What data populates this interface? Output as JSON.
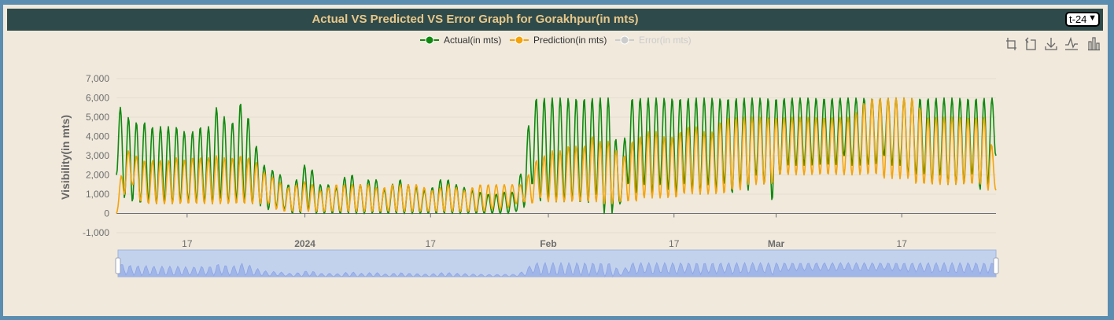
{
  "header": {
    "title": "Actual VS Predicted VS Error Graph for Gorakhpur(in mts)",
    "select_value": "t-24"
  },
  "toolbar": {
    "icons": [
      "zoom-icon",
      "zoom-reset-icon",
      "download-icon",
      "line-chart-icon",
      "bar-chart-icon"
    ]
  },
  "chart_data": {
    "type": "line",
    "title": "Actual VS Predicted VS Error Graph for Gorakhpur(in mts)",
    "ylabel": "Visibility(in mts)",
    "ylim": [
      -1000,
      7000
    ],
    "yticks": [
      "7,000",
      "6,000",
      "5,000",
      "4,000",
      "3,000",
      "2,000",
      "1,000",
      "0",
      "-1,000"
    ],
    "xticks": [
      {
        "label": "17",
        "bold": false
      },
      {
        "label": "2024",
        "bold": true
      },
      {
        "label": "17",
        "bold": false
      },
      {
        "label": "Feb",
        "bold": true
      },
      {
        "label": "17",
        "bold": false
      },
      {
        "label": "Mar",
        "bold": true
      },
      {
        "label": "17",
        "bold": false
      }
    ],
    "xrange": [
      "2023-12-08",
      "2024-03-29"
    ],
    "legend_position": "top-center",
    "grid": true,
    "series": [
      {
        "name": "Actual(in mts)",
        "color": "#0f8a0f",
        "visible": true,
        "daily_max": [
          6000,
          5000,
          5000,
          4500,
          5000,
          4000,
          5000,
          4000,
          5000,
          3500,
          5000,
          4000,
          5000,
          6000,
          4000,
          5500,
          6000,
          4000,
          3000,
          2000,
          2500,
          1500,
          1500,
          2000,
          3000,
          1500,
          1500,
          1500,
          1200,
          2500,
          1500,
          1500,
          2000,
          1500,
          1000,
          2000,
          1500,
          1500,
          1200,
          1200,
          1500,
          2000,
          1500,
          1500,
          1200,
          1200,
          1000,
          1000,
          1000,
          1200,
          1000,
          3000,
          6000,
          6000,
          6000,
          6000,
          6000,
          6000,
          6000,
          6000,
          6000,
          6000,
          6000,
          1500,
          6000,
          6000,
          6000,
          6000,
          6000,
          6000,
          6000,
          6000,
          6000,
          6000,
          6000,
          6000,
          6000,
          6000,
          6000,
          6000,
          6000,
          6000,
          6000,
          6000,
          6000,
          6000,
          6000,
          6000,
          6000,
          6000,
          6000,
          6000,
          6000,
          6000,
          6000,
          6000,
          6000,
          6000,
          6000,
          6000,
          6000,
          6000,
          6000,
          6000,
          6000,
          6000,
          6000,
          6000,
          6000,
          6000,
          6000
        ],
        "daily_min": [
          2000,
          800,
          600,
          500,
          600,
          500,
          600,
          500,
          500,
          600,
          500,
          600,
          500,
          800,
          500,
          600,
          500,
          500,
          400,
          200,
          300,
          200,
          0,
          0,
          200,
          0,
          0,
          0,
          0,
          0,
          0,
          0,
          0,
          0,
          0,
          0,
          0,
          0,
          0,
          0,
          0,
          0,
          0,
          0,
          0,
          0,
          0,
          0,
          0,
          0,
          100,
          300,
          1500,
          600,
          800,
          600,
          600,
          600,
          500,
          500,
          1000,
          0,
          0,
          500,
          1500,
          1000,
          1500,
          1000,
          1500,
          1200,
          1000,
          1500,
          1200,
          1000,
          1500,
          1200,
          1500,
          1000,
          1500,
          1200,
          2000,
          1500,
          600,
          2000,
          2500,
          2500,
          2500,
          2500,
          2500,
          2500,
          2500,
          3000,
          2500,
          2500,
          2500,
          2500,
          3000,
          2500,
          2500,
          2000,
          2000,
          2000,
          1500,
          2000,
          1500,
          1500,
          1500,
          2000,
          1200,
          1500,
          3000
        ]
      },
      {
        "name": "Prediction(in mts)",
        "color": "#f5a30a",
        "visible": true,
        "daily_max": [
          0,
          3500,
          3000,
          3000,
          2500,
          3000,
          2500,
          3000,
          2800,
          2800,
          3000,
          2800,
          3000,
          3000,
          2800,
          3000,
          3000,
          2800,
          2500,
          1800,
          2000,
          1200,
          1500,
          1500,
          1800,
          1200,
          1200,
          1500,
          1500,
          1500,
          1500,
          1500,
          1500,
          1200,
          1500,
          1500,
          1500,
          1500,
          1500,
          1200,
          1200,
          1500,
          1500,
          1200,
          1200,
          1500,
          1500,
          1500,
          1500,
          1500,
          1500,
          1500,
          2500,
          3000,
          3000,
          3500,
          3000,
          4000,
          3000,
          4000,
          4000,
          3500,
          4000,
          2500,
          3500,
          4000,
          4000,
          4500,
          4000,
          4000,
          4000,
          4500,
          4500,
          4500,
          4000,
          4500,
          5000,
          5000,
          5000,
          5000,
          5000,
          5000,
          5000,
          5000,
          5000,
          5000,
          5000,
          5000,
          5000,
          5000,
          5000,
          5000,
          5000,
          5500,
          6000,
          6000,
          6000,
          6000,
          6000,
          6000,
          6000,
          5000,
          5000,
          5000,
          5000,
          5000,
          5000,
          5000,
          5000,
          5000,
          2000
        ],
        "daily_min": [
          0,
          1000,
          1500,
          600,
          500,
          500,
          500,
          500,
          500,
          500,
          500,
          500,
          500,
          500,
          500,
          500,
          500,
          500,
          500,
          500,
          200,
          100,
          100,
          100,
          100,
          100,
          100,
          100,
          100,
          100,
          100,
          100,
          100,
          100,
          100,
          100,
          100,
          100,
          100,
          100,
          100,
          100,
          100,
          100,
          100,
          100,
          100,
          200,
          200,
          300,
          500,
          600,
          500,
          800,
          600,
          600,
          600,
          600,
          600,
          600,
          600,
          500,
          500,
          600,
          600,
          600,
          800,
          800,
          800,
          800,
          800,
          1000,
          1000,
          1000,
          1000,
          1000,
          1000,
          1200,
          1200,
          1500,
          1500,
          1500,
          1500,
          2000,
          2000,
          2000,
          2000,
          2000,
          2000,
          2000,
          2000,
          2000,
          2000,
          2000,
          2000,
          2000,
          1800,
          1800,
          1800,
          1800,
          1500,
          1500,
          1500,
          1500,
          1500,
          1500,
          1500,
          1500,
          1500,
          1200,
          1200
        ]
      },
      {
        "name": "Error(in mts)",
        "color": "#cccccc",
        "visible": false
      }
    ]
  }
}
